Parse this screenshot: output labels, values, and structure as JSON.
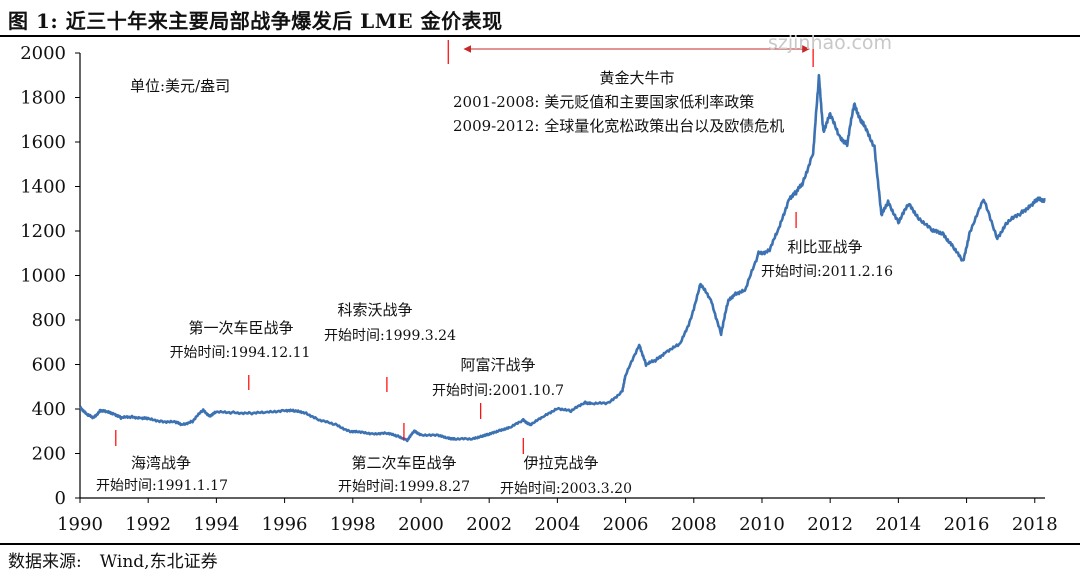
{
  "header": {
    "title": "图 1: 近三十年来主要局部战争爆发后 LME 金价表现"
  },
  "footer": {
    "source_label": "数据来源:",
    "source_value": "Wind,东北证券"
  },
  "watermark": "szjinhao.com",
  "colors": {
    "line": "#3d72b2",
    "marker": "#ff0000",
    "arrow": "#c62828",
    "axis": "#000000",
    "text": "#111111"
  },
  "chart_data": {
    "type": "line",
    "unit_label": "单位:美元/盎司",
    "xlim": [
      1990,
      2018.3
    ],
    "ylim": [
      0,
      2000
    ],
    "x_ticks": [
      "1990",
      "1992",
      "1994",
      "1996",
      "1998",
      "2000",
      "2002",
      "2004",
      "2006",
      "2008",
      "2010",
      "2012",
      "2014",
      "2016",
      "2018"
    ],
    "y_ticks": [
      "0",
      "200",
      "400",
      "600",
      "800",
      "1000",
      "1200",
      "1400",
      "1600",
      "1800",
      "2000"
    ],
    "series": [
      {
        "points": [
          [
            1990.0,
            410
          ],
          [
            1990.2,
            375
          ],
          [
            1990.4,
            360
          ],
          [
            1990.6,
            395
          ],
          [
            1990.8,
            385
          ],
          [
            1991.0,
            380
          ],
          [
            1991.2,
            360
          ],
          [
            1991.5,
            365
          ],
          [
            1991.8,
            360
          ],
          [
            1992.0,
            355
          ],
          [
            1992.4,
            345
          ],
          [
            1992.8,
            340
          ],
          [
            1993.0,
            330
          ],
          [
            1993.3,
            345
          ],
          [
            1993.6,
            395
          ],
          [
            1993.8,
            370
          ],
          [
            1994.0,
            385
          ],
          [
            1994.5,
            385
          ],
          [
            1995.0,
            380
          ],
          [
            1995.5,
            385
          ],
          [
            1996.0,
            395
          ],
          [
            1996.3,
            390
          ],
          [
            1996.6,
            385
          ],
          [
            1997.0,
            350
          ],
          [
            1997.5,
            330
          ],
          [
            1997.9,
            300
          ],
          [
            1998.2,
            295
          ],
          [
            1998.6,
            290
          ],
          [
            1999.0,
            290
          ],
          [
            1999.3,
            280
          ],
          [
            1999.6,
            260
          ],
          [
            1999.8,
            300
          ],
          [
            2000.0,
            285
          ],
          [
            2000.5,
            280
          ],
          [
            2000.8,
            270
          ],
          [
            2001.0,
            265
          ],
          [
            2001.5,
            265
          ],
          [
            2001.8,
            280
          ],
          [
            2002.0,
            285
          ],
          [
            2002.3,
            305
          ],
          [
            2002.6,
            315
          ],
          [
            2003.0,
            350
          ],
          [
            2003.2,
            330
          ],
          [
            2003.6,
            365
          ],
          [
            2004.0,
            405
          ],
          [
            2004.4,
            390
          ],
          [
            2004.8,
            430
          ],
          [
            2005.0,
            425
          ],
          [
            2005.5,
            425
          ],
          [
            2005.9,
            480
          ],
          [
            2006.0,
            550
          ],
          [
            2006.4,
            690
          ],
          [
            2006.6,
            600
          ],
          [
            2006.9,
            620
          ],
          [
            2007.2,
            660
          ],
          [
            2007.6,
            690
          ],
          [
            2007.9,
            800
          ],
          [
            2008.2,
            960
          ],
          [
            2008.5,
            890
          ],
          [
            2008.8,
            740
          ],
          [
            2009.0,
            880
          ],
          [
            2009.2,
            920
          ],
          [
            2009.5,
            930
          ],
          [
            2009.9,
            1100
          ],
          [
            2010.2,
            1110
          ],
          [
            2010.5,
            1210
          ],
          [
            2010.8,
            1350
          ],
          [
            2011.0,
            1370
          ],
          [
            2011.2,
            1420
          ],
          [
            2011.5,
            1550
          ],
          [
            2011.67,
            1890
          ],
          [
            2011.8,
            1650
          ],
          [
            2012.0,
            1720
          ],
          [
            2012.3,
            1620
          ],
          [
            2012.5,
            1590
          ],
          [
            2012.7,
            1770
          ],
          [
            2012.9,
            1700
          ],
          [
            2013.0,
            1670
          ],
          [
            2013.3,
            1580
          ],
          [
            2013.5,
            1270
          ],
          [
            2013.7,
            1330
          ],
          [
            2014.0,
            1240
          ],
          [
            2014.3,
            1320
          ],
          [
            2014.6,
            1260
          ],
          [
            2015.0,
            1200
          ],
          [
            2015.3,
            1190
          ],
          [
            2015.6,
            1130
          ],
          [
            2015.9,
            1060
          ],
          [
            2016.1,
            1200
          ],
          [
            2016.5,
            1340
          ],
          [
            2016.9,
            1170
          ],
          [
            2017.2,
            1240
          ],
          [
            2017.6,
            1280
          ],
          [
            2017.9,
            1320
          ],
          [
            2018.1,
            1340
          ],
          [
            2018.3,
            1340
          ]
        ]
      }
    ],
    "bull_annotation": {
      "arrow_from": 2000.8,
      "arrow_to": 2011.5,
      "lines": [
        "黄金大牛市",
        "2001-2008: 美元贬值和主要国家低利率政策",
        "2009-2012: 全球量化宽松政策出台以及欧债危机"
      ]
    },
    "events": [
      {
        "name": "海湾战争",
        "start": "开始时间:1991.1.17",
        "x": 1991.05,
        "label_pos": "below"
      },
      {
        "name": "第一次车臣战争",
        "start": "开始时间:1994.12.11",
        "x": 1994.95,
        "label_pos": "above"
      },
      {
        "name": "科索沃战争",
        "start": "开始时间:1999.3.24",
        "x": 1999.0,
        "label_pos": "above"
      },
      {
        "name": "第二次车臣战争",
        "start": "开始时间:1999.8.27",
        "x": 1999.5,
        "label_pos": "below"
      },
      {
        "name": "阿富汗战争",
        "start": "开始时间:2001.10.7",
        "x": 2001.75,
        "label_pos": "above"
      },
      {
        "name": "伊拉克战争",
        "start": "开始时间:2003.3.20",
        "x": 2003.0,
        "label_pos": "below"
      },
      {
        "name": "利比亚战争",
        "start": "开始时间:2011.2.16",
        "x": 2011.0,
        "label_pos": "below"
      }
    ]
  }
}
